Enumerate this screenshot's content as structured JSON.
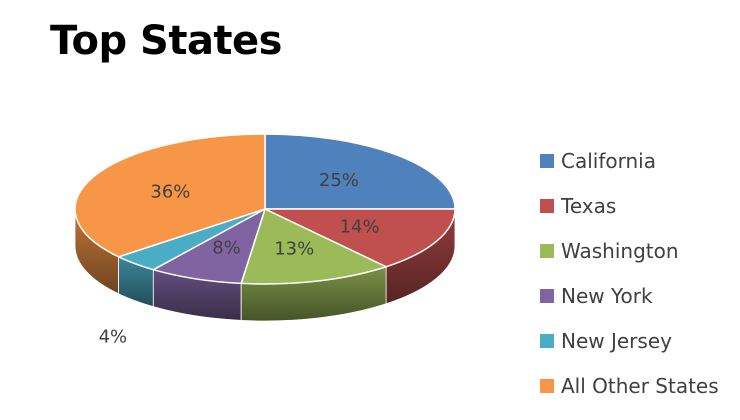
{
  "chart_data": {
    "type": "pie",
    "title": "Top States",
    "categories": [
      "California",
      "Texas",
      "Washington",
      "New York",
      "New Jersey",
      "All Other States"
    ],
    "values": [
      25,
      14,
      13,
      8,
      4,
      36
    ],
    "value_labels": [
      "25%",
      "14%",
      "13%",
      "8%",
      "4%",
      "36%"
    ],
    "colors": [
      "#4F81BD",
      "#C0504D",
      "#9BBB59",
      "#8064A2",
      "#4BACC6",
      "#F79646"
    ],
    "style": "3d",
    "legend_position": "right"
  }
}
